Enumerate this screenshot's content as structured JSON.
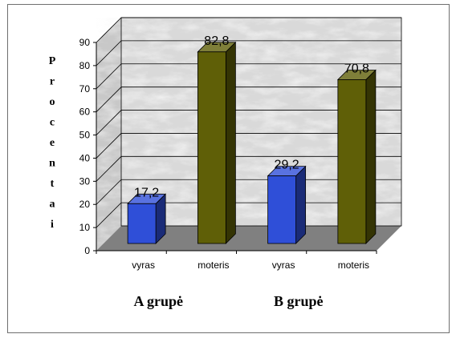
{
  "chart_data": {
    "type": "bar",
    "ylabel": "Procentai",
    "ylim": [
      0,
      90
    ],
    "yticks": [
      "0",
      "10",
      "20",
      "30",
      "40",
      "50",
      "60",
      "70",
      "80",
      "90"
    ],
    "categories": [
      "vyras",
      "moteris",
      "vyras",
      "moteris"
    ],
    "groups": [
      "A grupė",
      "B grupė"
    ],
    "values": [
      17.2,
      82.8,
      29.2,
      70.8
    ],
    "data_labels": [
      "17,2",
      "82,8",
      "29,2",
      "70,8"
    ],
    "bar_colors": [
      "#2f4fd8",
      "#5f5f07",
      "#2f4fd8",
      "#5f5f07"
    ],
    "grid": true,
    "style": "3d"
  }
}
